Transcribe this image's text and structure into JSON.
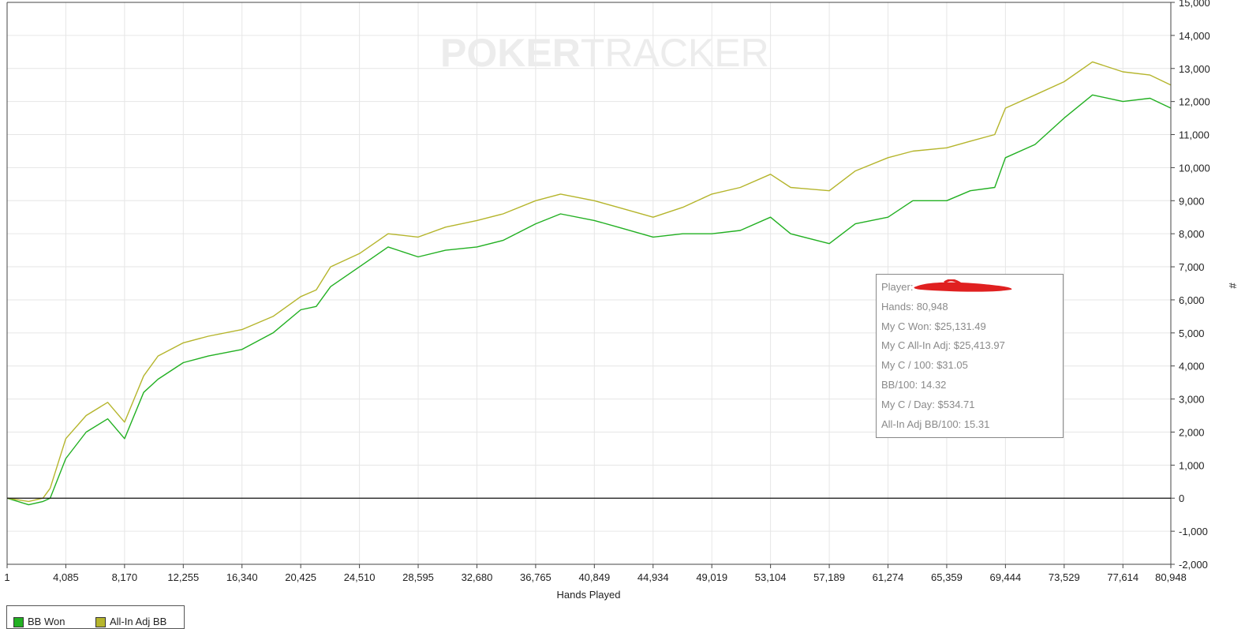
{
  "chart_data": {
    "type": "line",
    "watermark": {
      "bold": "POKER",
      "light": "TRACKER"
    },
    "xlabel": "Hands Played",
    "ylabel": "#",
    "xlim": [
      1,
      80948
    ],
    "ylim": [
      -2000,
      15000
    ],
    "x_ticks": [
      1,
      4085,
      8170,
      12255,
      16340,
      20425,
      24510,
      28595,
      32680,
      36765,
      40849,
      44934,
      49019,
      53104,
      57189,
      61274,
      65359,
      69444,
      73529,
      77614,
      80948
    ],
    "x_tick_labels": [
      "1",
      "4,085",
      "8,170",
      "12,255",
      "16,340",
      "20,425",
      "24,510",
      "28,595",
      "32,680",
      "36,765",
      "40,849",
      "44,934",
      "49,019",
      "53,104",
      "57,189",
      "61,274",
      "65,359",
      "69,444",
      "73,529",
      "77,614",
      "80,948"
    ],
    "y_ticks": [
      -2000,
      -1000,
      0,
      1000,
      2000,
      3000,
      4000,
      5000,
      6000,
      7000,
      8000,
      9000,
      10000,
      11000,
      12000,
      13000,
      14000,
      15000
    ],
    "y_tick_labels": [
      "-2,000",
      "-1,000",
      "0",
      "1,000",
      "2,000",
      "3,000",
      "4,000",
      "5,000",
      "6,000",
      "7,000",
      "8,000",
      "9,000",
      "10,000",
      "11,000",
      "12,000",
      "13,000",
      "14,000",
      "15,000"
    ],
    "grid": true,
    "legend_position": "bottom-left",
    "series": [
      {
        "name": "BB Won",
        "color": "#22b022",
        "x": [
          1,
          1500,
          2500,
          3000,
          4085,
          5500,
          7000,
          8170,
          9500,
          10500,
          12255,
          14000,
          16340,
          18500,
          20425,
          21500,
          22500,
          24510,
          26500,
          28595,
          30500,
          32680,
          34500,
          36765,
          38500,
          40849,
          42500,
          44934,
          47000,
          49019,
          51000,
          53104,
          54500,
          57189,
          59000,
          61274,
          63000,
          65359,
          67000,
          68700,
          69444,
          71500,
          73529,
          75500,
          77614,
          79500,
          80948
        ],
        "y": [
          0,
          -200,
          -100,
          0,
          1200,
          2000,
          2400,
          1800,
          3200,
          3600,
          4100,
          4300,
          4500,
          5000,
          5700,
          5800,
          6400,
          7000,
          7600,
          7300,
          7500,
          7600,
          7800,
          8300,
          8600,
          8400,
          8200,
          7900,
          8000,
          8000,
          8100,
          8500,
          8000,
          7700,
          8300,
          8500,
          9000,
          9000,
          9300,
          9400,
          10300,
          10700,
          11500,
          12200,
          12000,
          12100,
          11800
        ]
      },
      {
        "name": "All-In Adj BB",
        "color": "#b5b52c",
        "x": [
          1,
          1500,
          2500,
          3000,
          4085,
          5500,
          7000,
          8170,
          9500,
          10500,
          12255,
          14000,
          16340,
          18500,
          20425,
          21500,
          22500,
          24510,
          26500,
          28595,
          30500,
          32680,
          34500,
          36765,
          38500,
          40849,
          42500,
          44934,
          47000,
          49019,
          51000,
          53104,
          54500,
          57189,
          59000,
          61274,
          63000,
          65359,
          67000,
          68700,
          69444,
          71500,
          73529,
          75500,
          77614,
          79500,
          80948
        ],
        "y": [
          0,
          -100,
          0,
          300,
          1800,
          2500,
          2900,
          2300,
          3700,
          4300,
          4700,
          4900,
          5100,
          5500,
          6100,
          6300,
          7000,
          7400,
          8000,
          7900,
          8200,
          8400,
          8600,
          9000,
          9200,
          9000,
          8800,
          8500,
          8800,
          9200,
          9400,
          9800,
          9400,
          9300,
          9900,
          10300,
          10500,
          10600,
          10800,
          11000,
          11800,
          12200,
          12600,
          13200,
          12900,
          12800,
          12500
        ]
      }
    ]
  },
  "info_box": {
    "player_label": "Player:",
    "hands": "Hands: 80,948",
    "my_c_won": "My C Won: $25,131.49",
    "my_c_allin_adj": "My C All-In Adj: $25,413.97",
    "my_c_per_100": "My C / 100: $31.05",
    "bb_per_100": "BB/100: 14.32",
    "my_c_per_day": "My C / Day: $534.71",
    "allin_adj_bb_per_100": "All-In Adj BB/100: 15.31",
    "redaction_color": "#e02020"
  },
  "legend": {
    "items": [
      {
        "label": "BB Won",
        "color": "#22b022"
      },
      {
        "label": "All-In Adj BB",
        "color": "#b5b52c"
      }
    ]
  }
}
